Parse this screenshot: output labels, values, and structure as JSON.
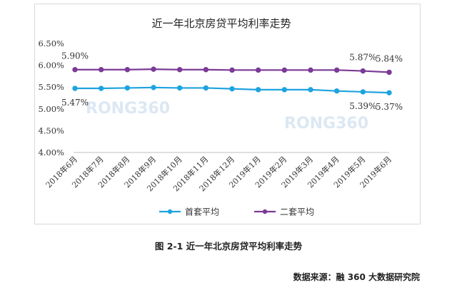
{
  "chart_data": {
    "type": "line",
    "title": "近一年北京房贷平均利率走势",
    "categories": [
      "2018年6月",
      "2018年7月",
      "2018年8月",
      "2018年9月",
      "2018年10月",
      "2018年11月",
      "2018年12月",
      "2019年1月",
      "2019年2月",
      "2019年3月",
      "2019年4月",
      "2019年5月",
      "2019年6月"
    ],
    "yticks": [
      "4.00%",
      "4.50%",
      "5.00%",
      "5.50%",
      "6.00%",
      "6.50%"
    ],
    "ylim": [
      4.0,
      6.5
    ],
    "grid": false,
    "legend_position": "bottom",
    "series": [
      {
        "name": "首套平均",
        "color": "#1ea3e0",
        "values": [
          5.47,
          5.47,
          5.48,
          5.49,
          5.48,
          5.48,
          5.46,
          5.44,
          5.44,
          5.44,
          5.41,
          5.39,
          5.37
        ]
      },
      {
        "name": "二套平均",
        "color": "#7b3a96",
        "values": [
          5.9,
          5.9,
          5.9,
          5.91,
          5.9,
          5.9,
          5.89,
          5.89,
          5.89,
          5.89,
          5.89,
          5.87,
          5.84
        ]
      }
    ],
    "data_labels": [
      {
        "series": 1,
        "index": 0,
        "text": "5.90%"
      },
      {
        "series": 0,
        "index": 0,
        "text": "5.47%"
      },
      {
        "series": 1,
        "index": 11,
        "text": "5.87%"
      },
      {
        "series": 1,
        "index": 12,
        "text": "5.84%"
      },
      {
        "series": 0,
        "index": 11,
        "text": "5.39%"
      },
      {
        "series": 0,
        "index": 12,
        "text": "5.37%"
      }
    ]
  },
  "watermark": "RONG360",
  "caption": "图 2-1  近一年北京房贷平均利率走势",
  "source": "数据来源：融 360 大数据研究院"
}
